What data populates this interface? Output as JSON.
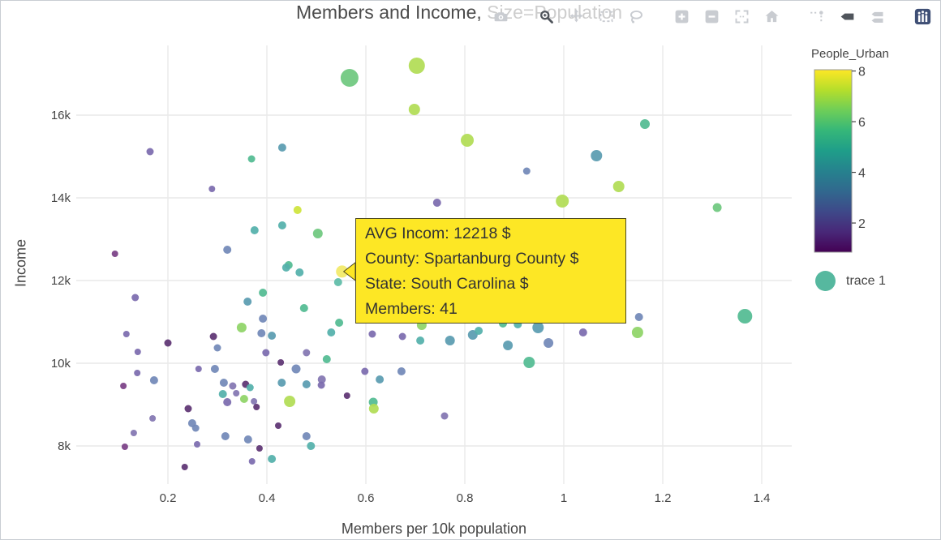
{
  "title": "Members and Income, Size=Population",
  "modebar": {
    "buttons": [
      {
        "name": "download-png",
        "icon": "camera",
        "active": false
      },
      {
        "name": "zoom",
        "icon": "magnifier",
        "active": true
      },
      {
        "name": "pan",
        "icon": "pan",
        "active": false
      },
      {
        "name": "box-select",
        "icon": "box-select",
        "active": false
      },
      {
        "name": "lasso-select",
        "icon": "lasso",
        "active": false
      },
      {
        "name": "zoom-in",
        "icon": "zoom-in",
        "active": false
      },
      {
        "name": "zoom-out",
        "icon": "zoom-out",
        "active": false
      },
      {
        "name": "autoscale",
        "icon": "autoscale",
        "active": false
      },
      {
        "name": "reset-axes",
        "icon": "home",
        "active": false
      },
      {
        "name": "toggle-spikelines",
        "icon": "spikelines",
        "active": false
      },
      {
        "name": "hover-closest",
        "icon": "hover-closest",
        "active": true
      },
      {
        "name": "hover-compare",
        "icon": "hover-compare",
        "active": false
      },
      {
        "name": "plotly-logo",
        "icon": "plotly-logo",
        "active": false
      }
    ]
  },
  "tooltip": {
    "lines": [
      "AVG Incom:  12218 $",
      "County: Spartanburg County $",
      "State: South Carolina $",
      "Members: 41"
    ],
    "bg": "#fde725",
    "border": "#4d4a20",
    "points_at": {
      "x": 0.552,
      "y": 12218
    }
  },
  "chart_data": {
    "type": "scatter",
    "title": "Members and Income, Size=Population",
    "xlabel": "Members per 10k population",
    "ylabel": "Income",
    "size_encodes": "Population",
    "color_encodes": "People_Urban",
    "x_ticks": [
      0.2,
      0.4,
      0.6,
      0.8,
      1,
      1.2,
      1.4
    ],
    "x_tick_labels": [
      "0.2",
      "0.4",
      "0.6",
      "0.8",
      "1",
      "1.2",
      "1.4"
    ],
    "y_ticks": [
      8000,
      10000,
      12000,
      14000,
      16000
    ],
    "y_tick_labels": [
      "8k",
      "10k",
      "12k",
      "14k",
      "16k"
    ],
    "x_range": [
      0.015,
      1.46
    ],
    "y_range": [
      7080,
      17690
    ],
    "grid": true,
    "legend": [
      {
        "label": "trace 1",
        "color": "#56b89f"
      }
    ],
    "colorbar": {
      "title": "People_Urban",
      "ticks": [
        2,
        4,
        6,
        8
      ],
      "tick_labels": [
        "2",
        "4",
        "6",
        "8"
      ],
      "range": [
        0.85,
        8.05
      ],
      "gradient_top_to_bottom": [
        "#fde725",
        "#b5de2b",
        "#6ece58",
        "#35b779",
        "#1f9e89",
        "#26828e",
        "#31688e",
        "#3e4989",
        "#482878",
        "#440154"
      ]
    },
    "palette_by_value": {
      "1": "#5e3473",
      "1.5": "#7b4186",
      "2": "#7c6cae",
      "2.5": "#8376b2",
      "3": "#7289b8",
      "3.5": "#6592b4",
      "4": "#5a9cb0",
      "4.5": "#54b0ab",
      "5": "#5fbca8",
      "5.5": "#53bb92",
      "6": "#6fc87f",
      "6.5": "#8fd467",
      "7": "#b2dd55",
      "7.5": "#cfe43c",
      "8": "#f2e968"
    },
    "points_format": [
      "members_per_10k",
      "income_usd",
      "people_urban",
      "marker_radius_px"
    ],
    "hovered_point_index": 21,
    "points": [
      [
        0.567,
        16902,
        6,
        11
      ],
      [
        0.703,
        17196,
        7,
        10
      ],
      [
        0.698,
        16137,
        7,
        7
      ],
      [
        0.805,
        15392,
        7,
        8
      ],
      [
        1.164,
        15784,
        5.5,
        6
      ],
      [
        1.066,
        15020,
        4,
        7
      ],
      [
        0.925,
        14647,
        3,
        4.5
      ],
      [
        0.164,
        15118,
        2,
        4.5
      ],
      [
        0.431,
        15216,
        4,
        5
      ],
      [
        0.369,
        14941,
        5.5,
        4.5
      ],
      [
        0.289,
        14216,
        2,
        4
      ],
      [
        1.111,
        14275,
        7,
        7
      ],
      [
        0.997,
        13922,
        7,
        8
      ],
      [
        1.31,
        13765,
        6,
        5.5
      ],
      [
        0.462,
        13706,
        7.5,
        5
      ],
      [
        0.431,
        13333,
        4.5,
        5
      ],
      [
        0.375,
        13216,
        4.5,
        5
      ],
      [
        0.503,
        13137,
        6,
        6
      ],
      [
        0.32,
        12745,
        3,
        5
      ],
      [
        0.093,
        12647,
        1.5,
        4
      ],
      [
        0.444,
        12373,
        5.5,
        5
      ],
      [
        0.552,
        12218,
        8,
        7.5
      ],
      [
        0.744,
        13882,
        2,
        5
      ],
      [
        0.466,
        12196,
        4.5,
        5
      ],
      [
        0.439,
        12314,
        4.5,
        5
      ],
      [
        0.544,
        11961,
        5,
        5
      ],
      [
        0.134,
        11588,
        2,
        4.5
      ],
      [
        0.392,
        11706,
        5.5,
        5
      ],
      [
        0.361,
        11490,
        4,
        5
      ],
      [
        0.475,
        11333,
        5.5,
        5
      ],
      [
        0.392,
        11078,
        3,
        5
      ],
      [
        0.349,
        10863,
        6.5,
        6
      ],
      [
        0.389,
        10725,
        3,
        5
      ],
      [
        0.41,
        10667,
        4,
        5
      ],
      [
        0.116,
        10706,
        2,
        4
      ],
      [
        0.2,
        10490,
        1,
        4.5
      ],
      [
        0.292,
        10647,
        1,
        4.5
      ],
      [
        0.3,
        10373,
        3,
        4.5
      ],
      [
        0.139,
        10275,
        2,
        4
      ],
      [
        0.53,
        10745,
        4.5,
        5
      ],
      [
        0.546,
        10980,
        5.5,
        5
      ],
      [
        0.613,
        10706,
        2,
        4.5
      ],
      [
        0.674,
        10647,
        2,
        4.5
      ],
      [
        0.71,
        10549,
        4.5,
        5
      ],
      [
        0.713,
        10922,
        6.5,
        6
      ],
      [
        0.398,
        10255,
        2,
        4.5
      ],
      [
        0.48,
        10255,
        2.5,
        4.5
      ],
      [
        0.521,
        10098,
        5.5,
        5
      ],
      [
        0.428,
        10020,
        1,
        4
      ],
      [
        0.459,
        9863,
        3,
        5.5
      ],
      [
        0.262,
        9863,
        2,
        4
      ],
      [
        0.295,
        9863,
        3,
        5
      ],
      [
        0.138,
        9765,
        2,
        4
      ],
      [
        0.172,
        9588,
        3,
        5
      ],
      [
        0.11,
        9451,
        1.5,
        4
      ],
      [
        0.313,
        9529,
        3,
        5
      ],
      [
        0.331,
        9451,
        2.5,
        4.5
      ],
      [
        0.357,
        9490,
        1,
        4.5
      ],
      [
        0.366,
        9412,
        4.5,
        4.5
      ],
      [
        0.311,
        9255,
        4.5,
        5
      ],
      [
        0.338,
        9275,
        2.5,
        4
      ],
      [
        0.354,
        9137,
        6.5,
        5
      ],
      [
        0.32,
        9059,
        2,
        5
      ],
      [
        0.374,
        9078,
        2.5,
        4
      ],
      [
        0.379,
        8941,
        1,
        4
      ],
      [
        0.43,
        9529,
        4,
        5
      ],
      [
        0.446,
        9078,
        7,
        7
      ],
      [
        0.48,
        9490,
        4,
        5
      ],
      [
        0.511,
        9608,
        2.5,
        5
      ],
      [
        0.51,
        9471,
        2,
        4.5
      ],
      [
        0.562,
        9216,
        1,
        4
      ],
      [
        0.615,
        9059,
        5.5,
        5.5
      ],
      [
        0.616,
        8902,
        7,
        6
      ],
      [
        0.598,
        9804,
        2,
        4.5
      ],
      [
        0.672,
        9804,
        3,
        5
      ],
      [
        0.628,
        9608,
        4,
        5
      ],
      [
        0.241,
        8902,
        1,
        4.5
      ],
      [
        0.169,
        8667,
        2.5,
        4
      ],
      [
        0.249,
        8549,
        3,
        5
      ],
      [
        0.256,
        8431,
        3,
        4.5
      ],
      [
        0.131,
        8314,
        2.5,
        4
      ],
      [
        0.423,
        8490,
        1,
        4
      ],
      [
        0.316,
        8235,
        3,
        5
      ],
      [
        0.362,
        8157,
        3,
        5
      ],
      [
        0.48,
        8235,
        3,
        5
      ],
      [
        0.489,
        8000,
        4.5,
        5
      ],
      [
        0.113,
        7980,
        1.5,
        4
      ],
      [
        0.259,
        8039,
        2,
        4
      ],
      [
        0.385,
        7941,
        1,
        4
      ],
      [
        0.37,
        7627,
        2,
        4
      ],
      [
        0.41,
        7686,
        4.5,
        5
      ],
      [
        0.234,
        7490,
        1,
        4
      ],
      [
        1.366,
        11137,
        5.5,
        9
      ],
      [
        1.152,
        11118,
        3,
        5
      ],
      [
        1.149,
        10745,
        6.5,
        7
      ],
      [
        1.039,
        10745,
        2,
        5
      ],
      [
        0.948,
        10863,
        4,
        7
      ],
      [
        0.877,
        10961,
        5.5,
        5
      ],
      [
        0.907,
        10941,
        4.5,
        5
      ],
      [
        0.969,
        10490,
        3,
        6
      ],
      [
        0.887,
        10431,
        4,
        6
      ],
      [
        0.816,
        10686,
        4,
        6
      ],
      [
        0.828,
        10784,
        4.5,
        5
      ],
      [
        0.77,
        10549,
        4,
        6
      ],
      [
        0.93,
        10020,
        5.5,
        7
      ],
      [
        0.759,
        8725,
        2.5,
        4.5
      ]
    ]
  }
}
